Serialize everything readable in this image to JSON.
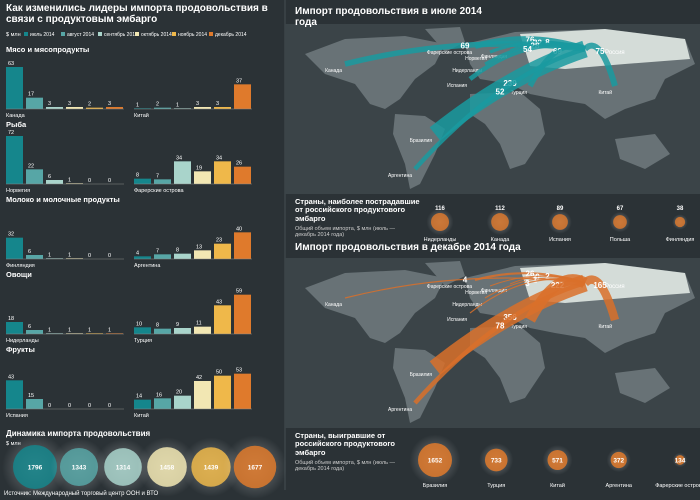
{
  "source": "Источник: Международный торговый центр ООН и ВТО",
  "chart_data": [
    {
      "type": "grouped-bars",
      "title": "Как изменились лидеры импорта продовольствия в связи с продуктовым эмбарго",
      "unit": "$ млн",
      "legend": {
        "labels": [
          "июль 2014",
          "август 2014",
          "сентябрь 2014",
          "октябрь 2014",
          "ноябрь 2014",
          "декабрь 2014"
        ],
        "colors": [
          "#15868c",
          "#57a6a6",
          "#a9d4cb",
          "#f2e7b3",
          "#efb84a",
          "#df7a2c"
        ]
      },
      "ylim": [
        0,
        75
      ],
      "sections": [
        {
          "title": "Мясо и мясопродукты",
          "charts": [
            {
              "category": "Канада",
              "values": [
                63,
                17,
                3,
                3,
                2,
                3
              ]
            },
            {
              "category": "Китай",
              "values": [
                1,
                2,
                1,
                3,
                3,
                37
              ]
            }
          ]
        },
        {
          "title": "Рыба",
          "charts": [
            {
              "category": "Норвегия",
              "values": [
                72,
                22,
                6,
                1,
                0,
                0
              ]
            },
            {
              "category": "Фарерские острова",
              "values": [
                8,
                7,
                34,
                19,
                34,
                26
              ]
            }
          ]
        },
        {
          "title": "Молоко и молочные продукты",
          "charts": [
            {
              "category": "Финляндия",
              "values": [
                32,
                6,
                1,
                1,
                0,
                0
              ]
            },
            {
              "category": "Аргентина",
              "values": [
                4,
                7,
                8,
                13,
                23,
                40
              ]
            }
          ]
        },
        {
          "title": "Овощи",
          "charts": [
            {
              "category": "Нидерланды",
              "values": [
                18,
                6,
                1,
                1,
                1,
                1
              ]
            },
            {
              "category": "Турция",
              "values": [
                10,
                8,
                9,
                11,
                43,
                59
              ]
            }
          ]
        },
        {
          "title": "Фрукты",
          "charts": [
            {
              "category": "Испания",
              "values": [
                43,
                15,
                0,
                0,
                0,
                0
              ]
            },
            {
              "category": "Китай",
              "values": [
                14,
                16,
                20,
                42,
                50,
                53
              ]
            }
          ]
        }
      ]
    },
    {
      "type": "bubbles",
      "title": "Динамика импорта продовольствия",
      "unit": "$ млн",
      "values": [
        1796,
        1343,
        1314,
        1458,
        1439,
        1677
      ],
      "colors": [
        "#15868c",
        "#57a6a6",
        "#a9d4cb",
        "#f2e7b3",
        "#efb84a",
        "#df7a2c"
      ]
    },
    {
      "type": "flow-map",
      "title": "Импорт продовольствия в июле 2014 года",
      "destination": "Россия",
      "countries": [
        "Канада",
        "Фарерские острова",
        "Норвегия",
        "Финляндия",
        "Нидерланды",
        "Испания",
        "Турция",
        "Китай",
        "Бразилия",
        "Аргентина"
      ],
      "values": [
        69,
        76,
        32,
        8,
        28,
        54,
        69,
        75,
        239,
        52
      ],
      "color": "#1a9aa0"
    },
    {
      "type": "bubbles",
      "title": "Страны, наиболее пострадавшие от российского продуктового эмбарго",
      "subtitle": "Общий объем импорта, $ млн (июль — декабрь 2014 года)",
      "categories": [
        "Нидерланды",
        "Канада",
        "Испания",
        "Польша",
        "Финляндия"
      ],
      "values": [
        116,
        112,
        89,
        67,
        38
      ],
      "color": "#d9782e"
    },
    {
      "type": "flow-map",
      "title": "Импорт продовольствия в декабре 2014 года",
      "destination": "Россия",
      "countries": [
        "Канада",
        "Фарерские острова",
        "Норвегия",
        "Финляндия",
        "Нидерланды",
        "Испания",
        "Турция",
        "Китай",
        "Бразилия",
        "Аргентина"
      ],
      "values": [
        4,
        26,
        0,
        2,
        1,
        3,
        222,
        165,
        356,
        78
      ],
      "color": "#d9702a"
    },
    {
      "type": "bubbles",
      "title": "Страны, выигравшие от российского продуктового эмбарго",
      "subtitle": "Общий объем импорта, $ млн (июль — декабрь 2014 года)",
      "categories": [
        "Бразилия",
        "Турция",
        "Китай",
        "Аргентина",
        "Фарерские острова"
      ],
      "values": [
        1652,
        733,
        571,
        372,
        134
      ],
      "color": "#e07a2c"
    }
  ]
}
